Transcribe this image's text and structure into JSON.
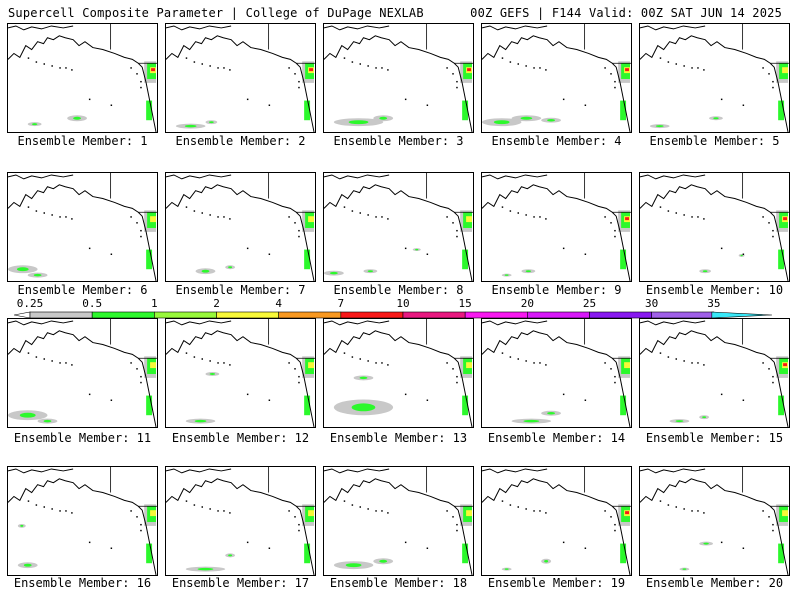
{
  "header": {
    "left_title": "Supercell Composite Parameter | College of DuPage NEXLAB",
    "right_title": "00Z GEFS | F144 Valid: 00Z SAT JUN 14 2025"
  },
  "legend": {
    "ticks": [
      "0.25",
      "0.5",
      "1",
      "2",
      "4",
      "7",
      "10",
      "15",
      "20",
      "25",
      "30",
      "35"
    ],
    "colors": [
      "#ffffff",
      "#c8c8c8",
      "#2cf82c",
      "#98f83a",
      "#f8f838",
      "#f89820",
      "#f81818",
      "#e81880",
      "#f818f0",
      "#d818f8",
      "#8818f0",
      "#a060e8",
      "#38e8f8"
    ]
  },
  "panels": [
    {
      "label": "Ensemble Member: 1"
    },
    {
      "label": "Ensemble Member: 2"
    },
    {
      "label": "Ensemble Member: 3"
    },
    {
      "label": "Ensemble Member: 4"
    },
    {
      "label": "Ensemble Member: 5"
    },
    {
      "label": "Ensemble Member: 6"
    },
    {
      "label": "Ensemble Member: 7"
    },
    {
      "label": "Ensemble Member: 8"
    },
    {
      "label": "Ensemble Member: 9"
    },
    {
      "label": "Ensemble Member: 10"
    },
    {
      "label": "Ensemble Member: 11"
    },
    {
      "label": "Ensemble Member: 12"
    },
    {
      "label": "Ensemble Member: 13"
    },
    {
      "label": "Ensemble Member: 14"
    },
    {
      "label": "Ensemble Member: 15"
    },
    {
      "label": "Ensemble Member: 16"
    },
    {
      "label": "Ensemble Member: 17"
    },
    {
      "label": "Ensemble Member: 18"
    },
    {
      "label": "Ensemble Member: 19"
    },
    {
      "label": "Ensemble Member: 20"
    }
  ]
}
